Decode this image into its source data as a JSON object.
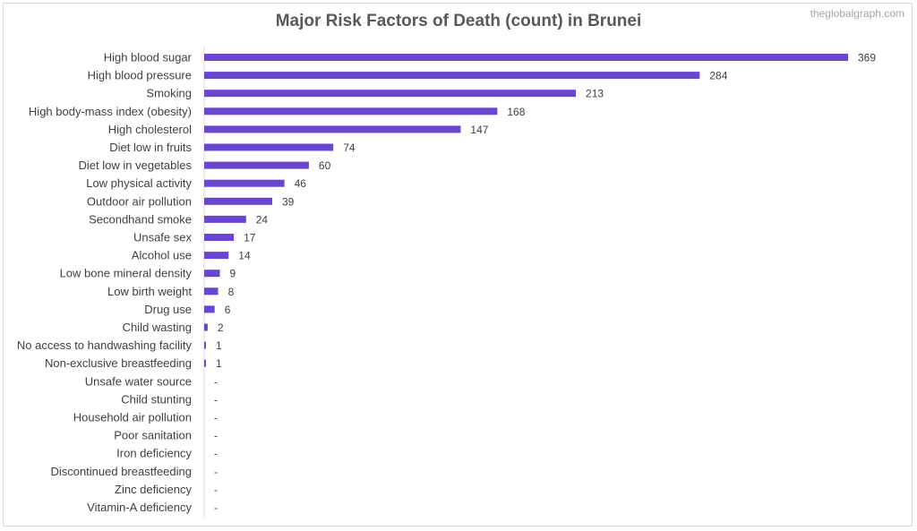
{
  "watermark": "theglobalgraph.com",
  "chart_data": {
    "type": "bar",
    "orientation": "horizontal",
    "title": "Major Risk Factors of Death (count) in Brunei",
    "xlabel": "",
    "ylabel": "",
    "bar_color": "#6a45cf",
    "xlim": [
      0,
      369
    ],
    "grid": false,
    "legend": "none",
    "categories": [
      "High blood sugar",
      "High blood pressure",
      "Smoking",
      "High body-mass index (obesity)",
      "High cholesterol",
      "Diet low in fruits",
      "Diet low in vegetables",
      "Low physical activity",
      "Outdoor air pollution",
      "Secondhand smoke",
      "Unsafe sex",
      "Alcohol use",
      "Low bone mineral density",
      "Low birth weight",
      "Drug use",
      "Child wasting",
      "No access to handwashing facility",
      "Non-exclusive breastfeeding",
      "Unsafe water source",
      "Child stunting",
      "Household air pollution",
      "Poor sanitation",
      "Iron deficiency",
      "Discontinued breastfeeding",
      "Zinc deficiency",
      "Vitamin-A deficiency"
    ],
    "values": [
      369,
      284,
      213,
      168,
      147,
      74,
      60,
      46,
      39,
      24,
      17,
      14,
      9,
      8,
      6,
      2,
      1,
      1,
      null,
      null,
      null,
      null,
      null,
      null,
      null,
      null
    ],
    "data_labels": [
      "369",
      "284",
      "213",
      "168",
      "147",
      "74",
      "60",
      "46",
      "39",
      "24",
      "17",
      "14",
      "9",
      "8",
      "6",
      "2",
      "1",
      "1",
      "-",
      "-",
      "-",
      "-",
      "-",
      "-",
      "-",
      "-"
    ]
  }
}
